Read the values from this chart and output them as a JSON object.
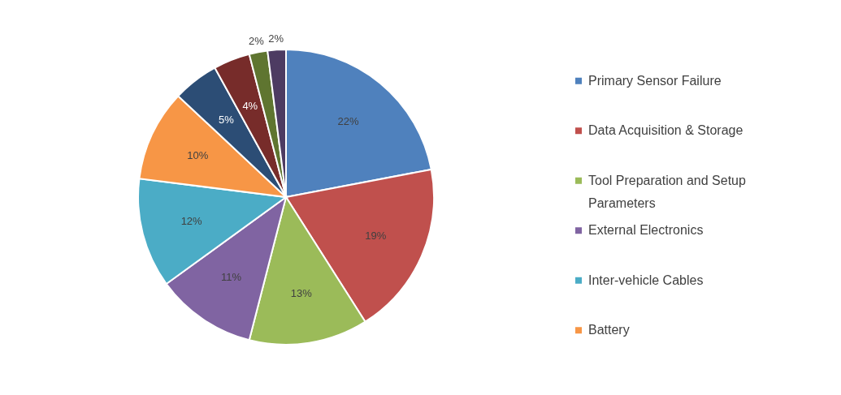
{
  "chart_data": {
    "type": "pie",
    "categories": [
      "Primary Sensor Failure",
      "Data Acquisition & Storage",
      "Tool Preparation and Setup Parameters",
      "External Electronics",
      "Inter-vehicle Cables",
      "Battery",
      null,
      null,
      null,
      null
    ],
    "values": [
      22,
      19,
      13,
      11,
      12,
      10,
      5,
      4,
      2,
      2
    ],
    "colors": [
      "#4f81bd",
      "#c0504d",
      "#9bbb59",
      "#8064a2",
      "#4bacc6",
      "#f79646",
      "#2c4d75",
      "#772c2a",
      "#5f7530",
      "#4d3b62"
    ],
    "value_labels": [
      "22%",
      "19%",
      "13%",
      "11%",
      "12%",
      "10%",
      "5%",
      "4%",
      "2%",
      "2%"
    ],
    "legend": "right"
  }
}
